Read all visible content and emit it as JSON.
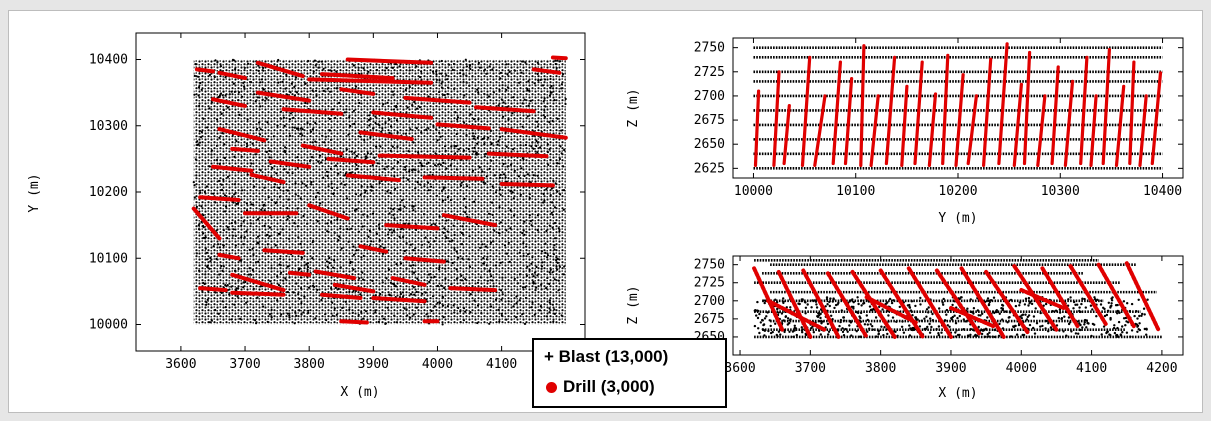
{
  "colors": {
    "blast": "#000000",
    "drill": "#e00000",
    "axis": "#000000"
  },
  "legend": {
    "blast_label": "+ Blast (13,000)",
    "drill_label": "Drill (3,000)"
  },
  "chart_data": [
    {
      "type": "scatter",
      "xlabel": "X (m)",
      "ylabel": "Y (m)",
      "xlim": [
        3530,
        4230
      ],
      "ylim": [
        9960,
        10440
      ],
      "xticks": [
        3600,
        3700,
        3800,
        3900,
        4000,
        4100
      ],
      "yticks": [
        10000,
        10100,
        10200,
        10300,
        10400
      ],
      "series": [
        {
          "name": "Blast (13,000)",
          "marker": "plus",
          "x_range": [
            3620,
            4200
          ],
          "y_range": [
            10000,
            10400
          ]
        },
        {
          "name": "Drill (3,000)",
          "marker": "dot",
          "segments": [
            [
              3625,
              10385,
              3650,
              10382
            ],
            [
              3660,
              10380,
              3700,
              10372
            ],
            [
              3720,
              10395,
              3790,
              10375
            ],
            [
              3800,
              10370,
              3990,
              10365
            ],
            [
              3820,
              10378,
              3930,
              10372
            ],
            [
              3860,
              10400,
              3990,
              10395
            ],
            [
              4150,
              10385,
              4190,
              10380
            ],
            [
              4180,
              10403,
              4200,
              10402
            ],
            [
              3650,
              10340,
              3700,
              10330
            ],
            [
              3720,
              10350,
              3800,
              10338
            ],
            [
              3850,
              10355,
              3900,
              10348
            ],
            [
              3950,
              10342,
              4050,
              10335
            ],
            [
              3660,
              10295,
              3730,
              10278
            ],
            [
              3760,
              10325,
              3850,
              10318
            ],
            [
              3900,
              10320,
              3990,
              10312
            ],
            [
              4060,
              10328,
              4150,
              10322
            ],
            [
              3680,
              10265,
              3720,
              10262
            ],
            [
              3790,
              10270,
              3850,
              10258
            ],
            [
              3880,
              10290,
              3960,
              10280
            ],
            [
              4000,
              10302,
              4080,
              10296
            ],
            [
              4100,
              10295,
              4200,
              10282
            ],
            [
              3650,
              10238,
              3710,
              10232
            ],
            [
              3740,
              10246,
              3800,
              10238
            ],
            [
              3830,
              10250,
              3900,
              10245
            ],
            [
              3910,
              10255,
              4050,
              10252
            ],
            [
              4080,
              10258,
              4170,
              10254
            ],
            [
              3630,
              10192,
              3690,
              10188
            ],
            [
              3710,
              10226,
              3760,
              10215
            ],
            [
              3860,
              10225,
              3940,
              10218
            ],
            [
              3980,
              10222,
              4070,
              10220
            ],
            [
              4100,
              10212,
              4180,
              10210
            ],
            [
              3620,
              10175,
              3660,
              10130
            ],
            [
              3700,
              10168,
              3780,
              10168
            ],
            [
              3800,
              10180,
              3860,
              10160
            ],
            [
              3920,
              10150,
              4000,
              10145
            ],
            [
              4010,
              10165,
              4090,
              10150
            ],
            [
              3660,
              10105,
              3690,
              10100
            ],
            [
              3730,
              10112,
              3790,
              10108
            ],
            [
              3810,
              10080,
              3870,
              10070
            ],
            [
              3880,
              10118,
              3920,
              10110
            ],
            [
              3950,
              10100,
              4010,
              10095
            ],
            [
              3680,
              10075,
              3760,
              10052
            ],
            [
              3770,
              10078,
              3800,
              10075
            ],
            [
              3840,
              10060,
              3900,
              10050
            ],
            [
              3930,
              10070,
              3980,
              10060
            ],
            [
              4020,
              10055,
              4090,
              10052
            ],
            [
              3630,
              10055,
              3670,
              10052
            ],
            [
              3680,
              10048,
              3760,
              10045
            ],
            [
              3820,
              10045,
              3880,
              10040
            ],
            [
              3900,
              10040,
              3980,
              10035
            ],
            [
              3850,
              10005,
              3890,
              10003
            ],
            [
              3980,
              10005,
              4000,
              10005
            ]
          ]
        }
      ]
    },
    {
      "type": "scatter",
      "xlabel": "Y (m)",
      "ylabel": "Z (m)",
      "xlim": [
        9980,
        10420
      ],
      "ylim": [
        2615,
        2760
      ],
      "xticks": [
        10000,
        10100,
        10200,
        10300,
        10400
      ],
      "yticks": [
        2625,
        2650,
        2675,
        2700,
        2725,
        2750
      ],
      "series": [
        {
          "name": "Blast (13,000)",
          "marker": "plus",
          "levels": [
            2625,
            2640,
            2655,
            2670,
            2685,
            2700,
            2715,
            2725,
            2740,
            2750
          ],
          "x_range": [
            10000,
            10400
          ]
        },
        {
          "name": "Drill (3,000)",
          "marker": "dot",
          "segments": [
            [
              10002,
              2628,
              10005,
              2705
            ],
            [
              10020,
              2628,
              10025,
              2725
            ],
            [
              10030,
              2630,
              10035,
              2690
            ],
            [
              10048,
              2628,
              10055,
              2740
            ],
            [
              10060,
              2628,
              10070,
              2700
            ],
            [
              10078,
              2630,
              10085,
              2735
            ],
            [
              10090,
              2630,
              10096,
              2718
            ],
            [
              10105,
              2628,
              10108,
              2752
            ],
            [
              10115,
              2628,
              10122,
              2700
            ],
            [
              10130,
              2630,
              10138,
              2740
            ],
            [
              10145,
              2628,
              10150,
              2710
            ],
            [
              10158,
              2630,
              10165,
              2735
            ],
            [
              10172,
              2628,
              10178,
              2702
            ],
            [
              10185,
              2630,
              10190,
              2742
            ],
            [
              10198,
              2628,
              10205,
              2722
            ],
            [
              10210,
              2630,
              10218,
              2700
            ],
            [
              10225,
              2628,
              10232,
              2738
            ],
            [
              10240,
              2630,
              10248,
              2754
            ],
            [
              10255,
              2628,
              10262,
              2712
            ],
            [
              10265,
              2630,
              10270,
              2745
            ],
            [
              10278,
              2628,
              10285,
              2700
            ],
            [
              10292,
              2630,
              10298,
              2730
            ],
            [
              10305,
              2628,
              10312,
              2715
            ],
            [
              10320,
              2630,
              10326,
              2740
            ],
            [
              10330,
              2628,
              10335,
              2700
            ],
            [
              10342,
              2630,
              10348,
              2748
            ],
            [
              10355,
              2628,
              10362,
              2710
            ],
            [
              10368,
              2630,
              10372,
              2735
            ],
            [
              10378,
              2628,
              10384,
              2700
            ],
            [
              10390,
              2630,
              10398,
              2724
            ]
          ]
        }
      ]
    },
    {
      "type": "scatter",
      "xlabel": "X (m)",
      "ylabel": "Z (m)",
      "xlim": [
        3590,
        4230
      ],
      "ylim": [
        2625,
        2762
      ],
      "xticks": [
        3600,
        3700,
        3800,
        3900,
        4000,
        4100,
        4200
      ],
      "yticks": [
        2650,
        2675,
        2700,
        2725,
        2750
      ],
      "series": [
        {
          "name": "Blast (13,000)",
          "marker": "plus",
          "levels": [
            2650,
            2660,
            2672,
            2685,
            2700,
            2712,
            2725,
            2738,
            2750,
            2756
          ],
          "x_range": [
            3620,
            4200
          ]
        },
        {
          "name": "Drill (3,000)",
          "marker": "dot",
          "segments": [
            [
              3620,
              2745,
              3660,
              2660
            ],
            [
              3655,
              2740,
              3700,
              2650
            ],
            [
              3690,
              2742,
              3740,
              2650
            ],
            [
              3725,
              2738,
              3780,
              2650
            ],
            [
              3760,
              2740,
              3820,
              2650
            ],
            [
              3800,
              2742,
              3860,
              2650
            ],
            [
              3840,
              2745,
              3900,
              2650
            ],
            [
              3880,
              2742,
              3940,
              2655
            ],
            [
              3915,
              2745,
              3975,
              2650
            ],
            [
              3950,
              2740,
              4010,
              2655
            ],
            [
              3990,
              2748,
              4050,
              2660
            ],
            [
              4030,
              2745,
              4080,
              2665
            ],
            [
              4070,
              2748,
              4120,
              2668
            ],
            [
              4110,
              2750,
              4160,
              2665
            ],
            [
              4150,
              2752,
              4195,
              2660
            ],
            [
              3640,
              2700,
              3720,
              2660
            ],
            [
              3780,
              2705,
              3850,
              2670
            ],
            [
              3900,
              2690,
              3960,
              2665
            ],
            [
              4000,
              2715,
              4060,
              2690
            ]
          ]
        }
      ]
    }
  ]
}
